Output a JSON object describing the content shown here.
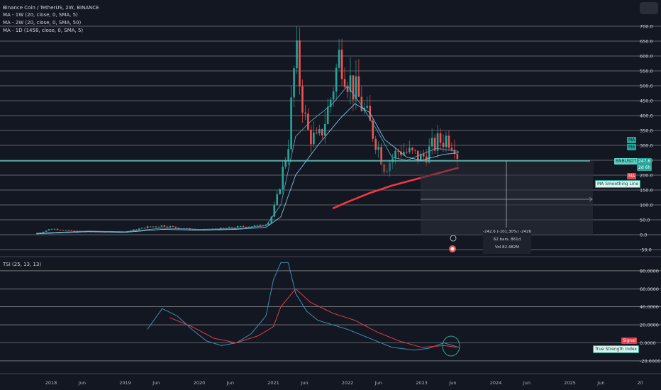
{
  "header": {
    "symbol_line": "Binance Coin / TetherUS, 2W, BINANCE",
    "ma_lines": [
      "MA - 1W (20, close, 0, SMA, 5)",
      "MA - 2W (20, close, 0, SMA, 50)",
      "MA - 1D (1458, close, 0, SMA, 5)"
    ]
  },
  "colors": {
    "background": "#131722",
    "grid": "#2a2e39",
    "up": "#26a69a",
    "down": "#ef5350",
    "ma": "#5d9db8",
    "ma_long": "#f23645",
    "teal_line": "#4fd1c5",
    "signal": "#e03c4b",
    "tsi": "#3b8fb0"
  },
  "price_axis": {
    "ticks": [
      "700.0",
      "650.0",
      "600.0",
      "550.0",
      "500.0",
      "450.0",
      "400.0",
      "350.0",
      "300.0",
      "250.0",
      "200.0",
      "150.0",
      "100.0",
      "50.0",
      "0.0",
      "-50.0"
    ],
    "current_symbol_tag": "BNBUSDT",
    "current_value": "247.6",
    "countdown": "2d 6h",
    "ma_tags": [
      "MA",
      "MA"
    ],
    "red_ma_tag": "MA",
    "smoothing_label": "MA Smoothing Line"
  },
  "measure": {
    "line1": "-242.6 (-101.30%) -2426",
    "line2": "62 bars, 861d",
    "line3": "Vol 82.482M"
  },
  "tsi_panel": {
    "title": "TSI (25, 13, 13)",
    "ticks": [
      "80.0000",
      "60.0000",
      "40.0000",
      "20.0000",
      "0.0000",
      "-20.0000"
    ],
    "signal_tag": "Signal",
    "tsi_tag": "True Strength Index"
  },
  "time_axis": {
    "labels": [
      "2018",
      "Jun",
      "2019",
      "Jun",
      "2020",
      "Jun",
      "2021",
      "Jun",
      "2022",
      "Jun",
      "2023",
      "Jun",
      "2024",
      "Jun",
      "2025",
      "Jun",
      "20"
    ]
  },
  "chart_data": {
    "type": "line",
    "title": "Binance Coin / TetherUS, 2W, BINANCE",
    "price_ylim": [
      -50,
      700
    ],
    "tsi_ylim": [
      -20,
      80
    ],
    "price_series": [
      {
        "name": "Price (close, approx.)",
        "x": [
          2017.8,
          2018.0,
          2018.3,
          2018.6,
          2019.0,
          2019.3,
          2019.5,
          2019.8,
          2020.0,
          2020.2,
          2020.5,
          2020.8,
          2020.95,
          2021.05,
          2021.2,
          2021.3,
          2021.45,
          2021.6,
          2021.75,
          2021.9,
          2022.0,
          2022.2,
          2022.4,
          2022.5,
          2022.7,
          2022.9,
          2023.0,
          2023.2,
          2023.35,
          2023.45,
          2023.5
        ],
        "values": [
          2,
          20,
          12,
          10,
          10,
          25,
          30,
          20,
          15,
          18,
          25,
          30,
          40,
          120,
          300,
          600,
          340,
          300,
          420,
          600,
          520,
          420,
          300,
          220,
          280,
          260,
          250,
          300,
          320,
          300,
          245
        ]
      },
      {
        "name": "MA 1W (approx.)",
        "x": [
          2017.8,
          2018.5,
          2019.0,
          2019.5,
          2020.0,
          2020.5,
          2020.9,
          2021.1,
          2021.3,
          2021.5,
          2021.8,
          2022.0,
          2022.2,
          2022.4,
          2022.6,
          2022.8,
          2023.0,
          2023.2,
          2023.5
        ],
        "values": [
          5,
          12,
          10,
          22,
          18,
          20,
          30,
          100,
          330,
          380,
          440,
          500,
          430,
          350,
          260,
          250,
          270,
          290,
          280
        ]
      },
      {
        "name": "MA 2W (approx.)",
        "x": [
          2017.8,
          2018.5,
          2019.0,
          2019.5,
          2020.0,
          2020.5,
          2020.9,
          2021.1,
          2021.3,
          2021.6,
          2021.9,
          2022.1,
          2022.3,
          2022.5,
          2022.8,
          2023.0,
          2023.3,
          2023.5
        ],
        "values": [
          3,
          10,
          8,
          18,
          15,
          18,
          25,
          60,
          200,
          300,
          390,
          440,
          410,
          320,
          260,
          250,
          270,
          275
        ]
      },
      {
        "name": "MA 1D (approx.)",
        "x": [
          2021.8,
          2022.0,
          2022.3,
          2022.6,
          2022.9,
          2023.2,
          2023.5
        ],
        "values": [
          88,
          110,
          140,
          165,
          185,
          205,
          225
        ]
      }
    ],
    "tsi_series": [
      {
        "name": "True Strength Index (approx.)",
        "x": [
          2019.3,
          2019.5,
          2019.7,
          2019.9,
          2020.1,
          2020.3,
          2020.5,
          2020.7,
          2020.9,
          2021.0,
          2021.1,
          2021.2,
          2021.3,
          2021.45,
          2021.6,
          2021.8,
          2022.0,
          2022.3,
          2022.6,
          2022.9,
          2023.1,
          2023.3,
          2023.5
        ],
        "values": [
          15,
          38,
          30,
          15,
          2,
          -3,
          0,
          10,
          30,
          70,
          89,
          89,
          55,
          35,
          25,
          20,
          15,
          5,
          -5,
          -8,
          -6,
          0,
          -5
        ]
      },
      {
        "name": "Signal (approx.)",
        "x": [
          2019.6,
          2019.9,
          2020.2,
          2020.5,
          2020.8,
          2021.0,
          2021.1,
          2021.3,
          2021.5,
          2021.8,
          2022.1,
          2022.4,
          2022.7,
          2023.0,
          2023.3,
          2023.5
        ],
        "values": [
          28,
          18,
          5,
          0,
          8,
          18,
          40,
          60,
          45,
          33,
          25,
          12,
          2,
          -5,
          -3,
          -5
        ]
      }
    ]
  }
}
